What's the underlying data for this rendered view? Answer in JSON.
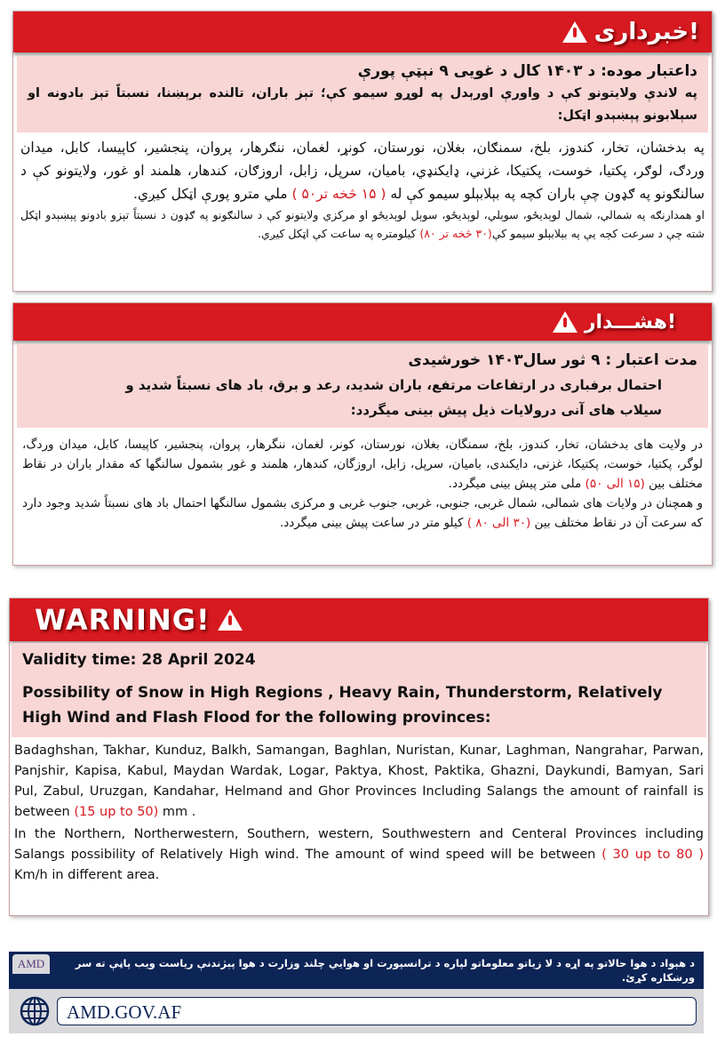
{
  "pashto": {
    "title": "خبرداری!",
    "validity": "داعتبار موده:  د ۱۴۰۳ کال د غويی ۹ نېټې پورې",
    "summary": "په لاندې ولايتونو کې د واورې اورېدل په لوړو سيمو کې؛ تېز باران، تالنده برېښنا، نسبتاً تېز بادونه او سېلابونو پېښېدو اټکل:",
    "rain_text_1": "په بدخشان، تخار، کندوز، بلخ، سمنګان، بغلان، نورستان، کونړ، لغمان، ننګرهار، پروان، پنجشير، کاپيسا، کابل، ميدان وردګ، لوګر، پکتيا، خوست، پکتيکا، غزني، ډايکنډي، باميان، سرپل، زابل، اروزګان، کندهار، هلمند او غور، ولايتونو کې د سالنګونو  په ګډون چې باران کچه په بېلابېلو سيمو کې له ",
    "rain_range": "( ۱۵ څخه تر۵۰ )",
    "rain_text_2": " ملي مترو پورې اټکل کيږي.",
    "wind_text_1": "او همدارنګه په شمالي، شمال لوېديځو، سوېلي، لوېديځو، سوېل لوېديځو او مرکزي ولايتونو کې د سالنګونو په ګډون د نسبتاً تېزو بادونو پېښېدو اټکل شته چې د سرعت  کچه يې په بېلابېلو سيمو کې",
    "wind_range": "(۳۰ څخه تر ۸۰)",
    "wind_text_2": " کيلومتره په ساعت کې اټکل کيږي."
  },
  "dari": {
    "title": "هشـــدار!",
    "validity": "مدت اعتبار : ۹ ثور سال۱۴۰۳  خورشیدی",
    "summary": "احتمال برفباری در ارتفاعات مرتفع، باران شدید، رعد و برق، باد های نسبتاً شدید و سیلاب های آنی درولایات ذیل پیش بینی میگردد:",
    "rain_text_1": "در ولایت های بدخشان، تخار، کندوز، بلخ، سمنگان، بغلان، نورستان، کونر، لغمان، ننگرهار، پروان، پنجشیر، کاپیسا، کابل، میدان وردگ، لوگر، پکتیا، خوست، پکتیکا، غزنی، دایکندی، بامیان، سرپل، زابل، اروزگان، کندهار، هلمند و غور بشمول سالنگها که مقدار  باران در نقاط مختلف بین  ",
    "rain_range": "(۱۵ الی ۵۰)",
    "rain_text_2": " ملی متر پیش بینی میگردد.",
    "wind_text_1": "و همچنان در ولایات های شمالی، شمال غربی، جنوبی، غربی، جنوب غربی و مرکزی بشمول سالنگها احتمال باد های نسبتاً شدید وجود دارد که سرعت آن در نقاط مختلف بین ",
    "wind_range": "(۳۰ الی ۸۰ )",
    "wind_text_2": " کیلو متر در ساعت پیش بینی میگردد."
  },
  "english": {
    "title": "WARNING!",
    "validity": "Validity time: 28 April 2024",
    "summary": "Possibility of  Snow in High Regions , Heavy Rain, Thunderstorm, Relatively High Wind and Flash Flood for the following provinces:",
    "rain_text_1": "Badaghshan, Takhar, Kunduz, Balkh, Samangan, Baghlan, Nuristan, Kunar, Laghman, Nangrahar, Parwan, Panjshir, Kapisa, Kabul, Maydan Wardak, Logar, Paktya, Khost, Paktika, Ghazni, Daykundi, Bamyan, Sari Pul, Zabul, Uruzgan, Kandahar, Helmand and Ghor Provinces Including Salangs the amount of rainfall is between ",
    "rain_range": "(15 up to 50)",
    "rain_text_2": " mm .",
    "wind_text_1": "In the Northern, Northerwestern, Southern, western, Southwestern and Centeral Provinces including Salangs possibility of Relatively High wind. The amount of wind speed will be between ",
    "wind_range": "( 30 up to 80 )",
    "wind_text_2": " Km/h in different area."
  },
  "footer": {
    "logo": "AMD",
    "notice": "د هېواد د هوا حالاتو په اړه د لا زياتو معلوماتو لپاره د ترانسپورت او هوايي چلند وزارت د هوا پېژندنې رياست ويب پاڼې ته سر ورښکاره کړئ.",
    "url": "AMD.GOV.AF",
    "icon": "globe-icon"
  },
  "colors": {
    "alert_red": "#d71920",
    "pink": "#f9d6d6",
    "navy": "#0d2456"
  }
}
